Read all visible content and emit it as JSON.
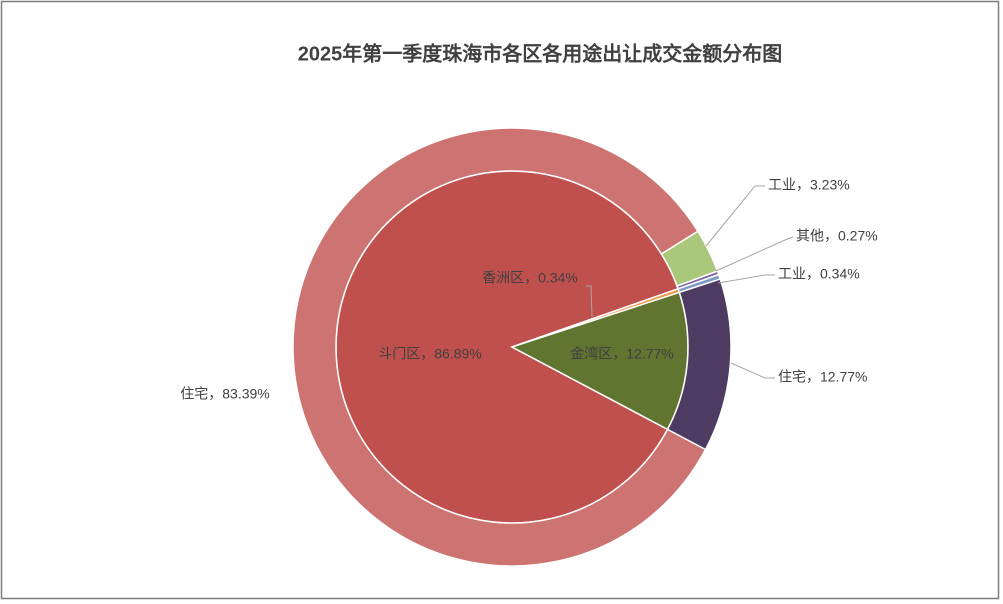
{
  "chart_data": {
    "type": "nested_pie",
    "title": "2025年第一季度珠海市各区各用途出让成交金额分布图",
    "rings": [
      {
        "values": [
          86.89,
          0.34,
          12.77
        ],
        "value_labels": [
          "斗门区，86.89%",
          "香洲区，0.34%",
          "金湾区，12.77%"
        ],
        "colors": [
          "#c0504d",
          "#f79646",
          "#5f7530"
        ]
      },
      {
        "values": [
          83.39,
          3.23,
          0.27,
          0.34,
          12.77
        ],
        "value_labels": [
          "住宅，83.39%",
          "工业，3.23%",
          "其他，0.27%",
          "工业，0.34%",
          "住宅，12.77%"
        ],
        "colors": [
          "#cd7371",
          "#aac77b",
          "#8064a2",
          "#7e9bc8",
          "#4e3b62"
        ]
      }
    ]
  }
}
